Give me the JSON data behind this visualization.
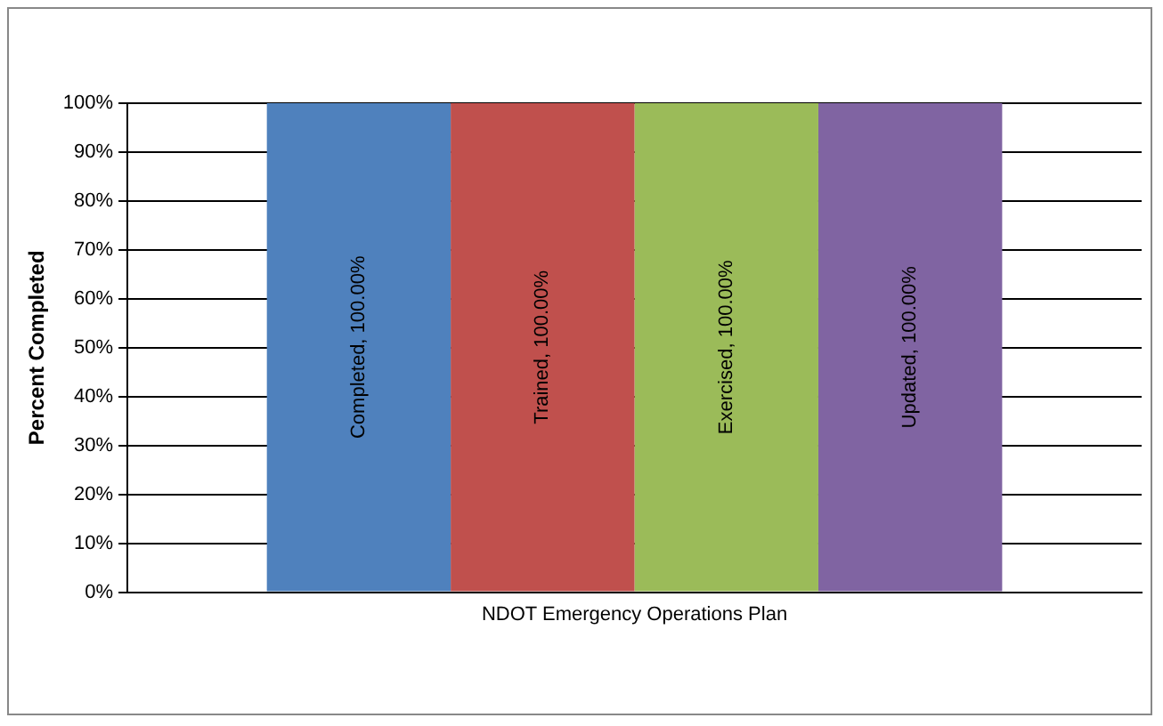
{
  "chart_data": {
    "type": "bar",
    "ylabel": "Percent Completed",
    "categories": [
      "NDOT Emergency Operations Plan"
    ],
    "series": [
      {
        "color": "#4f81bd",
        "values": [
          100
        ],
        "value_labels": [
          "Completed, 100.00%"
        ]
      },
      {
        "color": "#c0504d",
        "values": [
          100
        ],
        "value_labels": [
          "Trained, 100.00%"
        ]
      },
      {
        "color": "#9bbb59",
        "values": [
          100
        ],
        "value_labels": [
          "Exercised, 100.00%"
        ]
      },
      {
        "color": "#8064a2",
        "values": [
          100
        ],
        "value_labels": [
          "Updated, 100.00%"
        ]
      }
    ],
    "ylim": [
      0,
      100
    ],
    "yticks": [
      {
        "value": 0,
        "label": "0%"
      },
      {
        "value": 10,
        "label": "10%"
      },
      {
        "value": 20,
        "label": "20%"
      },
      {
        "value": 30,
        "label": "30%"
      },
      {
        "value": 40,
        "label": "40%"
      },
      {
        "value": 50,
        "label": "50%"
      },
      {
        "value": 60,
        "label": "60%"
      },
      {
        "value": 70,
        "label": "70%"
      },
      {
        "value": 80,
        "label": "80%"
      },
      {
        "value": 90,
        "label": "90%"
      },
      {
        "value": 100,
        "label": "100%"
      }
    ],
    "grid": "y",
    "legend": false
  }
}
